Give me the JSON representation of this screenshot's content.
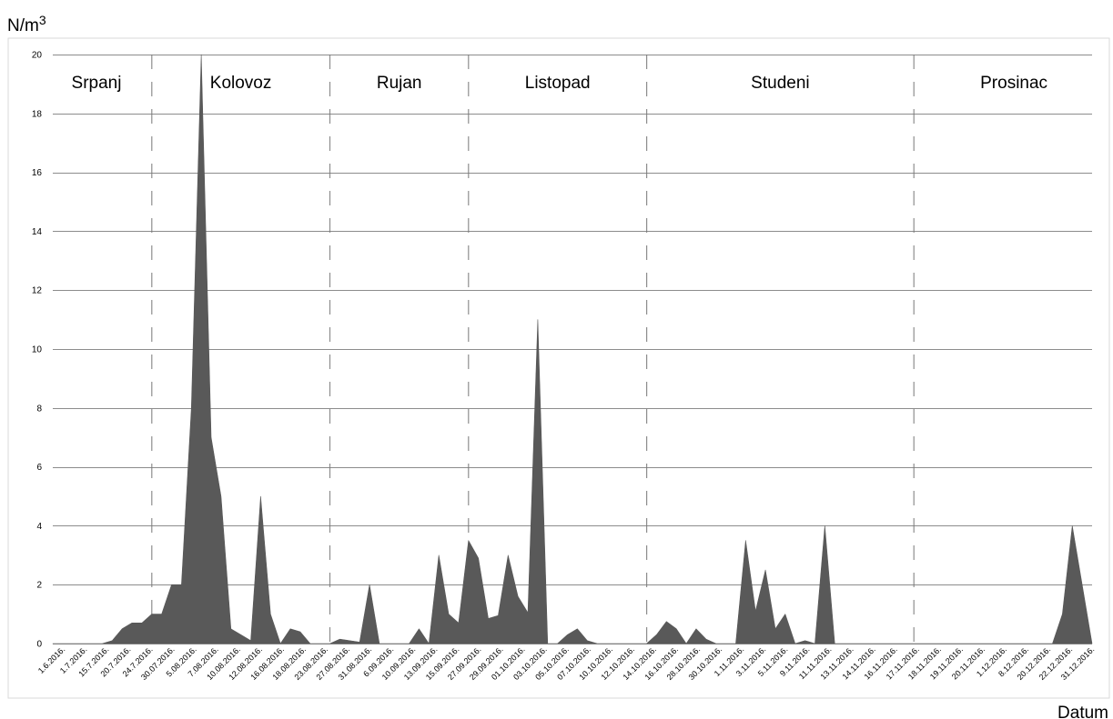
{
  "chart_data": {
    "type": "area",
    "ylabel_base": "N/m",
    "ylabel_exp": "3",
    "xlabel": "Datum",
    "ylim": [
      0,
      20
    ],
    "yticks": [
      0,
      2,
      4,
      6,
      8,
      10,
      12,
      14,
      16,
      18,
      20
    ],
    "grid": true,
    "fill_color": "#595959",
    "x_tick_labels": [
      "1.6.2016.",
      "1.7.2016.",
      "15.7.2016.",
      "20.7.2016.",
      "24.7.2016.",
      "30.07.2016.",
      "5.08.2016.",
      "7.08.2016.",
      "10.08.2016.",
      "12.08.2016.",
      "16.08.2016.",
      "18.08.2016.",
      "23.08.2016.",
      "27.08.2016.",
      "31.08.2016.",
      "6.09.2016.",
      "10.09.2016.",
      "13.09.2016.",
      "15.09.2016.",
      "27.09.2016.",
      "29.09.2016.",
      "01.10.2016.",
      "03.10.2016.",
      "05.10.2016.",
      "07.10.2016.",
      "10.10.2016.",
      "12.10.2016.",
      "14.10.2016.",
      "16.10.2016.",
      "28.10.2016.",
      "30.10.2016.",
      "1.11.2016.",
      "3.11.2016.",
      "5.11.2016.",
      "9.11.2016.",
      "11.11.2016.",
      "13.11.2016.",
      "14.11.2016.",
      "16.11.2016.",
      "17.11.2016.",
      "18.11.2016.",
      "19.11.2016.",
      "20.11.2016.",
      "1.12.2016.",
      "8.12.2016.",
      "20.12.2016.",
      "22.12.2016.",
      "31.12.2016."
    ],
    "values": [
      0,
      0,
      0,
      0,
      0,
      0,
      0.1,
      0.5,
      0.7,
      0.7,
      1,
      1,
      2,
      2,
      8,
      20,
      7,
      5,
      0.5,
      0.3,
      0.1,
      5,
      1,
      0,
      0.5,
      0.4,
      0,
      0,
      0,
      0.15,
      0.1,
      0.05,
      2,
      0,
      0,
      0,
      0,
      0.5,
      0,
      3,
      1,
      0.7,
      3.5,
      2.9,
      0.85,
      0.95,
      3,
      1.6,
      1.05,
      11,
      0,
      0,
      0.3,
      0.5,
      0.1,
      0,
      0,
      0,
      0,
      0,
      0,
      0.3,
      0.75,
      0.5,
      0,
      0.5,
      0.15,
      0,
      0,
      0,
      3.5,
      1.1,
      2.5,
      0.5,
      1,
      0,
      0.1,
      0,
      4,
      0,
      0,
      0,
      0,
      0,
      0,
      0,
      0,
      0,
      0,
      0,
      0,
      0,
      0,
      0,
      0,
      0,
      0,
      0,
      0,
      0,
      0,
      0,
      1,
      4,
      2,
      0
    ],
    "months": [
      {
        "name": "Srpanj",
        "start_index": 0
      },
      {
        "name": "Kolovoz",
        "start_index": 10
      },
      {
        "name": "Rujan",
        "start_index": 28
      },
      {
        "name": "Listopad",
        "start_index": 42
      },
      {
        "name": "Studeni",
        "start_index": 60
      },
      {
        "name": "Prosinac",
        "start_index": 87
      }
    ]
  }
}
